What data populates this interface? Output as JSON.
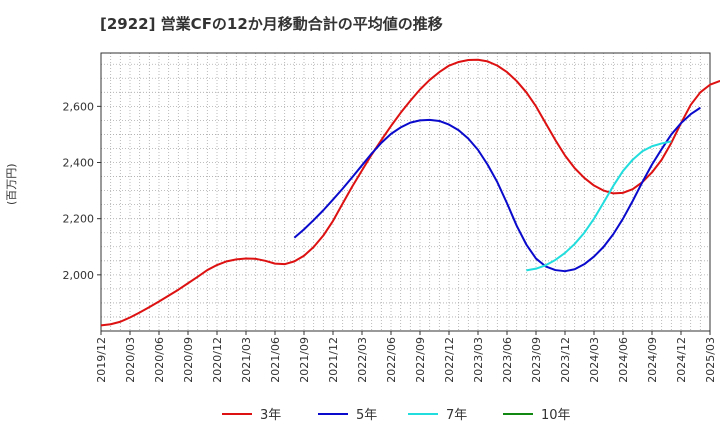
{
  "chart_data": {
    "type": "line",
    "title": "[2922]  営業CFの12か月移動合計の平均値の推移",
    "unit_label": "(百万円)",
    "ylim": [
      1800,
      2790
    ],
    "y_ticks": [
      2000,
      2200,
      2400,
      2600
    ],
    "y_tick_labels": [
      "2,000",
      "2,200",
      "2,400",
      "2,600"
    ],
    "x_range": [
      "2019-12",
      "2025-03"
    ],
    "x_tick_labels": [
      "2019/12",
      "2020/03",
      "2020/06",
      "2020/09",
      "2020/12",
      "2021/03",
      "2021/06",
      "2021/09",
      "2021/12",
      "2022/03",
      "2022/06",
      "2022/09",
      "2022/12",
      "2023/03",
      "2023/06",
      "2023/09",
      "2023/12",
      "2024/03",
      "2024/06",
      "2024/09",
      "2024/12",
      "2025/03"
    ],
    "grid": true,
    "legend_position": "bottom",
    "series": [
      {
        "name": "3年",
        "color": "#dd1111",
        "start": "2019-12",
        "values": [
          1820,
          1824,
          1833,
          1848,
          1866,
          1885,
          1905,
          1926,
          1947,
          1970,
          1993,
          2017,
          2035,
          2048,
          2055,
          2058,
          2057,
          2050,
          2040,
          2038,
          2048,
          2068,
          2099,
          2140,
          2192,
          2254,
          2315,
          2372,
          2428,
          2480,
          2530,
          2577,
          2620,
          2660,
          2694,
          2722,
          2745,
          2758,
          2765,
          2766,
          2760,
          2745,
          2722,
          2690,
          2650,
          2600,
          2540,
          2480,
          2425,
          2380,
          2345,
          2318,
          2300,
          2290,
          2292,
          2305,
          2330,
          2365,
          2410,
          2470,
          2540,
          2605,
          2650,
          2677,
          2690,
          2682,
          2660,
          2625,
          2578
        ]
      },
      {
        "name": "5年",
        "color": "#0a0acc",
        "start": "2021-08",
        "values": [
          2132,
          2162,
          2195,
          2230,
          2268,
          2307,
          2348,
          2390,
          2432,
          2470,
          2502,
          2525,
          2542,
          2550,
          2552,
          2548,
          2535,
          2515,
          2485,
          2445,
          2392,
          2330,
          2255,
          2175,
          2108,
          2058,
          2030,
          2017,
          2013,
          2020,
          2038,
          2065,
          2100,
          2145,
          2200,
          2263,
          2330,
          2393,
          2448,
          2500,
          2540,
          2572,
          2595
        ]
      },
      {
        "name": "7年",
        "color": "#22dddd",
        "start": "2023-08",
        "values": [
          2016,
          2022,
          2034,
          2053,
          2078,
          2110,
          2150,
          2200,
          2258,
          2317,
          2370,
          2410,
          2440,
          2458,
          2468,
          2475
        ]
      },
      {
        "name": "10年",
        "color": "#118811",
        "start": "2024-09",
        "values": []
      }
    ]
  }
}
